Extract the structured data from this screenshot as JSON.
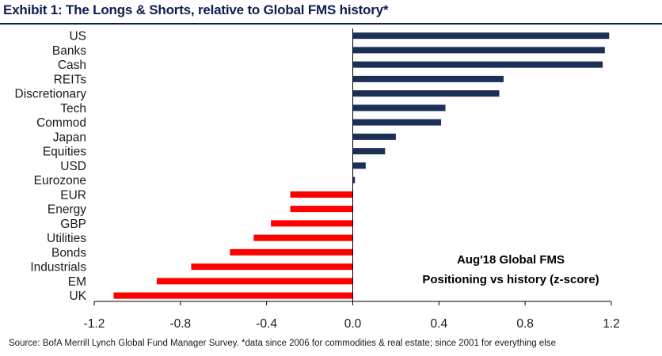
{
  "title": "Exhibit 1: The Longs & Shorts, relative to Global FMS history*",
  "source": "Source:  BofA Merrill Lynch Global Fund Manager Survey. *data since 2006 for commodities & real estate; since 2001  for everything else",
  "colors": {
    "positive": "#1c2f56",
    "negative": "#ff0000",
    "title": "#0d1d4f"
  },
  "chart_data": {
    "type": "bar",
    "orientation": "horizontal",
    "categories": [
      "US",
      "Banks",
      "Cash",
      "REITs",
      "Discretionary",
      "Tech",
      "Commod",
      "Japan",
      "Equities",
      "USD",
      "Eurozone",
      "EUR",
      "Energy",
      "GBP",
      "Utilities",
      "Bonds",
      "Industrials",
      "EM",
      "UK"
    ],
    "values": [
      1.19,
      1.17,
      1.16,
      0.7,
      0.68,
      0.43,
      0.41,
      0.2,
      0.15,
      0.06,
      0.01,
      -0.29,
      -0.29,
      -0.38,
      -0.46,
      -0.57,
      -0.75,
      -0.91,
      -1.11
    ],
    "xlim": [
      -1.2,
      1.2
    ],
    "xticks": [
      -1.2,
      -0.8,
      -0.4,
      0.0,
      0.4,
      0.8,
      1.2
    ],
    "xtick_labels": [
      "-1.2",
      "-0.8",
      "-0.4",
      "0.0",
      "0.4",
      "0.8",
      "1.2"
    ],
    "annotation": [
      "Aug'18 Global FMS",
      "Positioning vs history (z-score)"
    ],
    "title": "Exhibit 1: The Longs & Shorts, relative to Global FMS history*",
    "xlabel": "",
    "ylabel": ""
  }
}
